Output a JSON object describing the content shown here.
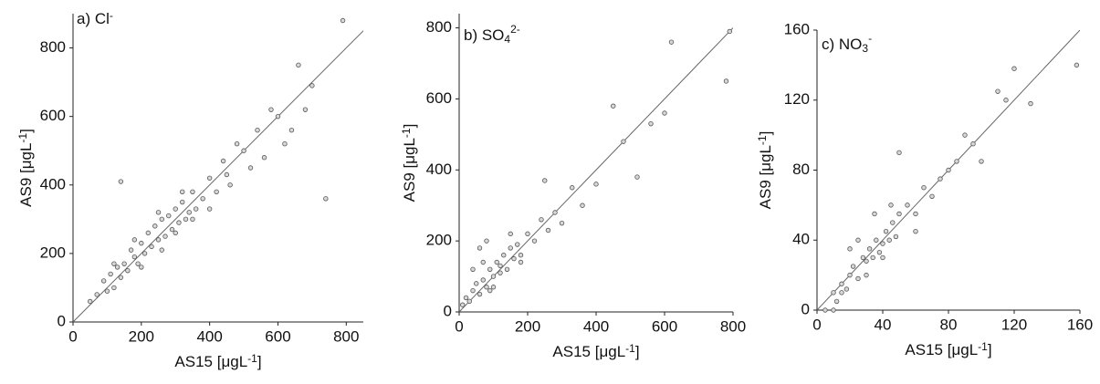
{
  "chart_data": [
    {
      "type": "scatter",
      "panel_label": {
        "text": "a) Cl",
        "sup": "-"
      },
      "x_label": {
        "text": "AS15 [μgL",
        "sup": "-1",
        "end": "]"
      },
      "y_label": {
        "text": "AS9 [μgL",
        "sup": "-1",
        "end": "]"
      },
      "identity_line": true,
      "xlim": [
        0,
        850
      ],
      "ylim": [
        0,
        900
      ],
      "xticks": [
        0,
        200,
        400,
        600,
        800
      ],
      "yticks": [
        0,
        200,
        400,
        600,
        800
      ],
      "x": [
        50,
        70,
        90,
        100,
        110,
        120,
        130,
        140,
        150,
        160,
        170,
        180,
        190,
        200,
        210,
        220,
        230,
        240,
        250,
        260,
        270,
        280,
        290,
        300,
        310,
        320,
        330,
        340,
        350,
        360,
        380,
        400,
        420,
        440,
        460,
        480,
        500,
        520,
        540,
        560,
        580,
        600,
        620,
        640,
        660,
        680,
        700,
        740,
        790,
        140,
        200,
        250,
        300,
        350,
        120,
        180,
        260,
        320,
        400,
        450
      ],
      "y": [
        60,
        80,
        120,
        90,
        140,
        100,
        160,
        130,
        170,
        150,
        210,
        190,
        170,
        230,
        200,
        260,
        220,
        280,
        240,
        300,
        250,
        310,
        270,
        330,
        290,
        350,
        300,
        320,
        380,
        330,
        360,
        420,
        380,
        470,
        400,
        520,
        500,
        450,
        560,
        480,
        620,
        600,
        520,
        560,
        750,
        620,
        690,
        360,
        880,
        410,
        160,
        320,
        260,
        300,
        170,
        240,
        210,
        380,
        330,
        430
      ]
    },
    {
      "type": "scatter",
      "panel_label": {
        "text": "b) SO",
        "sub": "4",
        "sup": "2-"
      },
      "x_label": {
        "text": "AS15 [μgL",
        "sup": "-1",
        "end": "]"
      },
      "y_label": {
        "text": "AS9 [μgL",
        "sup": "-1",
        "end": "]"
      },
      "identity_line": true,
      "xlim": [
        0,
        800
      ],
      "ylim": [
        0,
        840
      ],
      "xticks": [
        0,
        200,
        400,
        600,
        800
      ],
      "yticks": [
        0,
        200,
        400,
        600,
        800
      ],
      "x": [
        10,
        20,
        30,
        40,
        50,
        60,
        70,
        80,
        90,
        100,
        110,
        120,
        130,
        140,
        150,
        160,
        170,
        180,
        200,
        220,
        240,
        260,
        280,
        300,
        330,
        360,
        400,
        450,
        480,
        520,
        560,
        600,
        620,
        780,
        790,
        40,
        60,
        80,
        100,
        120,
        150,
        180,
        90,
        70,
        250
      ],
      "y": [
        20,
        40,
        30,
        60,
        80,
        50,
        90,
        70,
        120,
        100,
        140,
        110,
        160,
        120,
        180,
        150,
        190,
        160,
        220,
        200,
        260,
        230,
        280,
        250,
        350,
        300,
        360,
        580,
        480,
        380,
        530,
        560,
        760,
        650,
        790,
        120,
        180,
        200,
        70,
        130,
        220,
        140,
        60,
        140,
        370
      ]
    },
    {
      "type": "scatter",
      "panel_label": {
        "text": "c) NO",
        "sub": "3",
        "sup": "-"
      },
      "x_label": {
        "text": "AS15 [μgL",
        "sup": "-1",
        "end": "]"
      },
      "y_label": {
        "text": "AS9 [μgL",
        "sup": "-1",
        "end": "]"
      },
      "identity_line": true,
      "xlim": [
        0,
        160
      ],
      "ylim": [
        0,
        160
      ],
      "xticks": [
        0,
        40,
        80,
        120,
        160
      ],
      "yticks": [
        0,
        40,
        80,
        120,
        160
      ],
      "x": [
        5,
        10,
        12,
        15,
        18,
        20,
        22,
        25,
        28,
        30,
        32,
        34,
        36,
        38,
        40,
        42,
        44,
        46,
        48,
        50,
        55,
        60,
        65,
        70,
        75,
        80,
        85,
        90,
        95,
        100,
        110,
        115,
        120,
        130,
        158,
        25,
        30,
        35,
        40,
        45,
        50,
        20,
        60,
        15,
        10
      ],
      "y": [
        0,
        10,
        5,
        15,
        12,
        20,
        25,
        18,
        30,
        28,
        35,
        30,
        40,
        33,
        38,
        45,
        40,
        50,
        42,
        55,
        60,
        55,
        70,
        65,
        75,
        80,
        85,
        100,
        95,
        85,
        125,
        120,
        138,
        118,
        140,
        40,
        20,
        55,
        30,
        60,
        90,
        35,
        45,
        10,
        0
      ]
    }
  ]
}
